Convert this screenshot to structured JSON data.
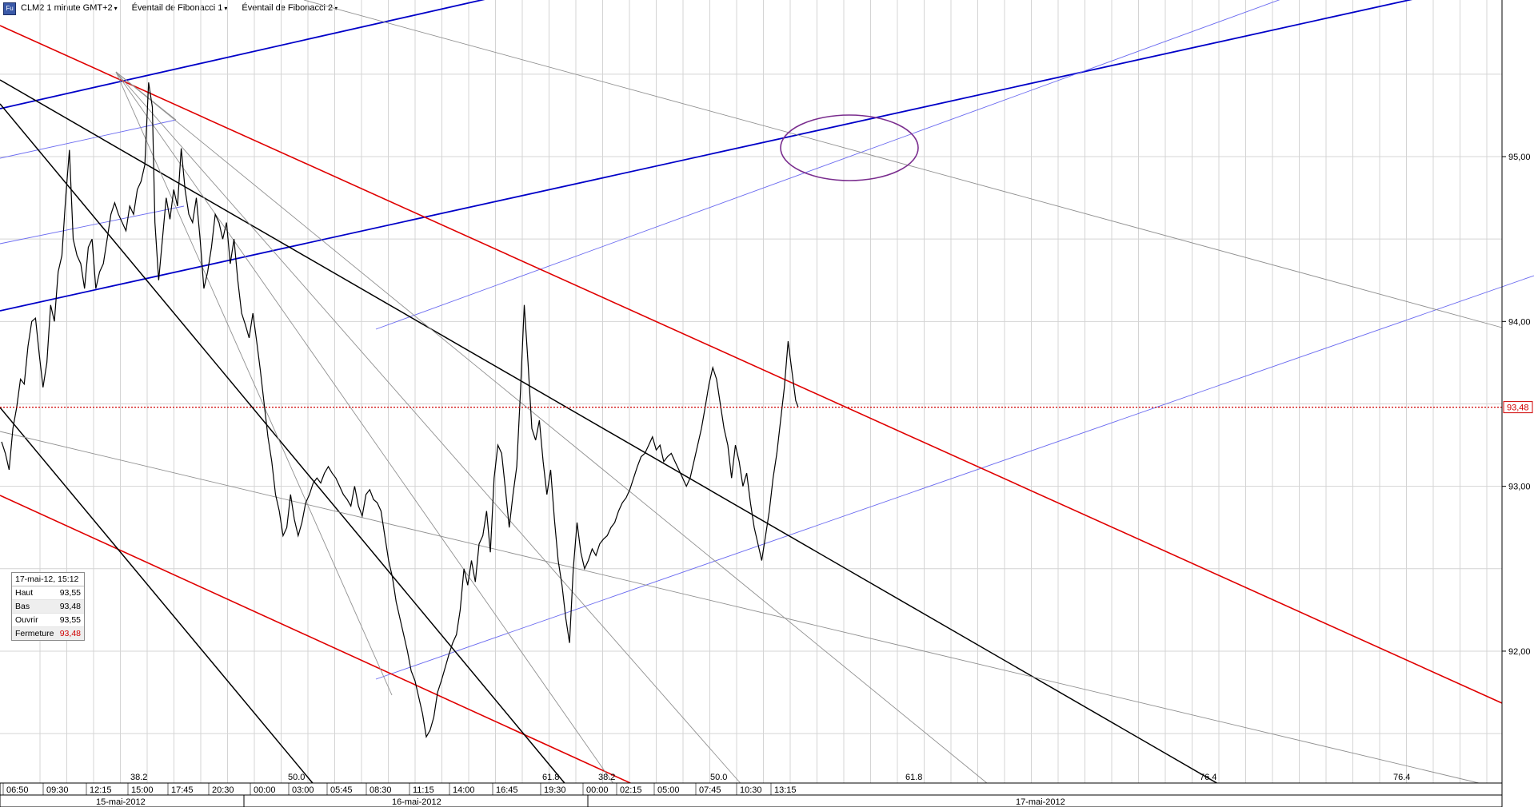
{
  "header": {
    "icon_label": "Fu",
    "items": [
      {
        "label": "CLM2 1 minute GMT+2"
      },
      {
        "label": "Éventail de Fibonacci 1"
      },
      {
        "label": "Éventail de Fibonacci 2"
      }
    ]
  },
  "chart_data": {
    "type": "line",
    "title": "CLM2 1 minute GMT+2",
    "xlabel": "",
    "ylabel": "",
    "ylim": [
      91.2,
      95.95
    ],
    "y_ticks": [
      {
        "value": 92.0,
        "label": "92,00"
      },
      {
        "value": 93.0,
        "label": "93,00"
      },
      {
        "value": 94.0,
        "label": "94,00"
      },
      {
        "value": 95.0,
        "label": "95,00"
      }
    ],
    "current_price": {
      "value": 93.48,
      "label": "93,48",
      "color": "#d00000"
    },
    "time_labels": [
      "06:50",
      "09:30",
      "12:15",
      "15:00",
      "17:45",
      "20:30",
      "00:00",
      "03:00",
      "05:45",
      "08:30",
      "11:15",
      "14:00",
      "16:45",
      "19:30",
      "00:00",
      "02:15",
      "05:00",
      "07:45",
      "10:30",
      "13:15"
    ],
    "date_labels": [
      "15-mai-2012",
      "16-mai-2012",
      "17-mai-2012"
    ],
    "fib_fan_labels": [
      "38.2",
      "50.0",
      "61.8",
      "38.2",
      "50.0",
      "61.8",
      "76.4",
      "76.4"
    ],
    "series": [
      {
        "values": [
          [
            0,
            93.27
          ],
          [
            3,
            93.2
          ],
          [
            6,
            93.1
          ],
          [
            9,
            93.35
          ],
          [
            12,
            93.48
          ],
          [
            15,
            93.65
          ],
          [
            18,
            93.62
          ],
          [
            21,
            93.85
          ],
          [
            24,
            94.0
          ],
          [
            27,
            94.02
          ],
          [
            30,
            93.8
          ],
          [
            33,
            93.6
          ],
          [
            36,
            93.75
          ],
          [
            39,
            94.1
          ],
          [
            42,
            94.0
          ],
          [
            45,
            94.3
          ],
          [
            48,
            94.4
          ],
          [
            51,
            94.75
          ],
          [
            54,
            95.04
          ],
          [
            57,
            94.5
          ],
          [
            60,
            94.4
          ],
          [
            63,
            94.35
          ],
          [
            66,
            94.2
          ],
          [
            69,
            94.45
          ],
          [
            72,
            94.5
          ],
          [
            75,
            94.2
          ],
          [
            78,
            94.3
          ],
          [
            81,
            94.35
          ],
          [
            84,
            94.5
          ],
          [
            87,
            94.65
          ],
          [
            90,
            94.72
          ],
          [
            93,
            94.65
          ],
          [
            96,
            94.6
          ],
          [
            99,
            94.55
          ],
          [
            102,
            94.7
          ],
          [
            105,
            94.65
          ],
          [
            108,
            94.8
          ],
          [
            111,
            94.85
          ],
          [
            114,
            94.95
          ],
          [
            117,
            95.45
          ],
          [
            120,
            95.3
          ],
          [
            122,
            94.6
          ],
          [
            125,
            94.25
          ],
          [
            128,
            94.5
          ],
          [
            131,
            94.75
          ],
          [
            134,
            94.62
          ],
          [
            137,
            94.8
          ],
          [
            140,
            94.7
          ],
          [
            143,
            95.05
          ],
          [
            146,
            94.8
          ],
          [
            149,
            94.65
          ],
          [
            152,
            94.6
          ],
          [
            155,
            94.75
          ],
          [
            158,
            94.5
          ],
          [
            161,
            94.2
          ],
          [
            164,
            94.3
          ],
          [
            167,
            94.45
          ],
          [
            170,
            94.65
          ],
          [
            173,
            94.6
          ],
          [
            176,
            94.5
          ],
          [
            179,
            94.6
          ],
          [
            182,
            94.35
          ],
          [
            185,
            94.5
          ],
          [
            188,
            94.25
          ],
          [
            191,
            94.05
          ],
          [
            194,
            93.98
          ],
          [
            197,
            93.9
          ],
          [
            200,
            94.05
          ],
          [
            203,
            93.88
          ],
          [
            206,
            93.7
          ],
          [
            209,
            93.5
          ],
          [
            212,
            93.3
          ],
          [
            215,
            93.15
          ],
          [
            218,
            92.95
          ],
          [
            221,
            92.85
          ],
          [
            224,
            92.7
          ],
          [
            227,
            92.75
          ],
          [
            230,
            92.95
          ],
          [
            233,
            92.8
          ],
          [
            236,
            92.7
          ],
          [
            239,
            92.78
          ],
          [
            242,
            92.9
          ],
          [
            245,
            92.95
          ],
          [
            248,
            93.02
          ],
          [
            251,
            93.05
          ],
          [
            254,
            93.02
          ],
          [
            257,
            93.08
          ],
          [
            260,
            93.12
          ],
          [
            263,
            93.08
          ],
          [
            266,
            93.05
          ],
          [
            269,
            93.0
          ],
          [
            272,
            92.95
          ],
          [
            275,
            92.92
          ],
          [
            278,
            92.88
          ],
          [
            281,
            93.0
          ],
          [
            284,
            92.88
          ],
          [
            287,
            92.82
          ],
          [
            290,
            92.95
          ],
          [
            293,
            92.98
          ],
          [
            296,
            92.92
          ],
          [
            299,
            92.9
          ],
          [
            302,
            92.85
          ],
          [
            305,
            92.7
          ],
          [
            308,
            92.55
          ],
          [
            311,
            92.45
          ],
          [
            314,
            92.3
          ],
          [
            317,
            92.2
          ],
          [
            320,
            92.1
          ],
          [
            323,
            92.0
          ],
          [
            326,
            91.88
          ],
          [
            329,
            91.82
          ],
          [
            332,
            91.72
          ],
          [
            335,
            91.62
          ],
          [
            338,
            91.48
          ],
          [
            341,
            91.52
          ],
          [
            344,
            91.6
          ],
          [
            347,
            91.75
          ],
          [
            350,
            91.82
          ],
          [
            353,
            91.9
          ],
          [
            356,
            91.98
          ],
          [
            359,
            92.05
          ],
          [
            362,
            92.1
          ],
          [
            365,
            92.25
          ],
          [
            368,
            92.5
          ],
          [
            371,
            92.4
          ],
          [
            374,
            92.55
          ],
          [
            377,
            92.42
          ],
          [
            380,
            92.65
          ],
          [
            383,
            92.7
          ],
          [
            386,
            92.85
          ],
          [
            389,
            92.6
          ],
          [
            392,
            93.05
          ],
          [
            395,
            93.25
          ],
          [
            398,
            93.2
          ],
          [
            401,
            92.98
          ],
          [
            404,
            92.75
          ],
          [
            407,
            92.95
          ],
          [
            410,
            93.12
          ],
          [
            413,
            93.58
          ],
          [
            416,
            94.1
          ],
          [
            419,
            93.75
          ],
          [
            422,
            93.35
          ],
          [
            425,
            93.28
          ],
          [
            428,
            93.4
          ],
          [
            431,
            93.15
          ],
          [
            434,
            92.95
          ],
          [
            437,
            93.1
          ],
          [
            440,
            92.8
          ],
          [
            443,
            92.55
          ],
          [
            446,
            92.4
          ],
          [
            449,
            92.2
          ],
          [
            452,
            92.05
          ],
          [
            455,
            92.5
          ],
          [
            458,
            92.78
          ],
          [
            461,
            92.6
          ],
          [
            464,
            92.5
          ],
          [
            467,
            92.55
          ],
          [
            470,
            92.62
          ],
          [
            473,
            92.58
          ],
          [
            476,
            92.65
          ],
          [
            479,
            92.68
          ],
          [
            482,
            92.7
          ],
          [
            485,
            92.75
          ],
          [
            488,
            92.78
          ],
          [
            491,
            92.85
          ],
          [
            494,
            92.9
          ],
          [
            497,
            92.93
          ],
          [
            500,
            92.98
          ],
          [
            503,
            93.05
          ],
          [
            506,
            93.12
          ],
          [
            509,
            93.18
          ],
          [
            512,
            93.2
          ],
          [
            515,
            93.25
          ],
          [
            518,
            93.3
          ],
          [
            521,
            93.22
          ],
          [
            524,
            93.25
          ],
          [
            527,
            93.15
          ],
          [
            530,
            93.18
          ],
          [
            533,
            93.2
          ],
          [
            536,
            93.15
          ],
          [
            539,
            93.1
          ],
          [
            542,
            93.05
          ],
          [
            545,
            93.0
          ],
          [
            548,
            93.05
          ],
          [
            551,
            93.15
          ],
          [
            554,
            93.25
          ],
          [
            557,
            93.35
          ],
          [
            560,
            93.48
          ],
          [
            563,
            93.62
          ],
          [
            566,
            93.72
          ],
          [
            569,
            93.65
          ],
          [
            572,
            93.5
          ],
          [
            575,
            93.35
          ],
          [
            578,
            93.25
          ],
          [
            581,
            93.05
          ],
          [
            584,
            93.25
          ],
          [
            587,
            93.15
          ],
          [
            590,
            93.0
          ],
          [
            593,
            93.08
          ],
          [
            596,
            92.9
          ],
          [
            599,
            92.75
          ],
          [
            602,
            92.65
          ],
          [
            605,
            92.55
          ],
          [
            608,
            92.7
          ],
          [
            611,
            92.85
          ],
          [
            614,
            93.05
          ],
          [
            617,
            93.2
          ],
          [
            620,
            93.4
          ],
          [
            623,
            93.6
          ],
          [
            626,
            93.88
          ],
          [
            629,
            93.7
          ],
          [
            632,
            93.52
          ],
          [
            634,
            93.48
          ]
        ]
      }
    ],
    "annotations": [
      {
        "type": "ellipse",
        "color": "#7a2d8e"
      },
      {
        "type": "trendline",
        "color": "#0000c8",
        "name": "blue channel"
      },
      {
        "type": "trendline",
        "color": "#e00000",
        "name": "red channel"
      },
      {
        "type": "fib_fan",
        "color": "#808080"
      }
    ]
  },
  "info_box": {
    "date": "17-mai-12, 15:12",
    "rows": [
      {
        "label": "Haut",
        "value": "93,55"
      },
      {
        "label": "Bas",
        "value": "93,48"
      },
      {
        "label": "Ouvrir",
        "value": "93,55"
      },
      {
        "label": "Fermeture",
        "value": "93,48"
      }
    ]
  },
  "colors": {
    "grid": "#d4d4d4",
    "price": "#000000",
    "blue_channel": "#0000c8",
    "blue_thin": "#6b6bf0",
    "red_channel": "#e00000",
    "fan": "#909090",
    "ellipse": "#7a2d8e",
    "current_price": "#d00000"
  }
}
